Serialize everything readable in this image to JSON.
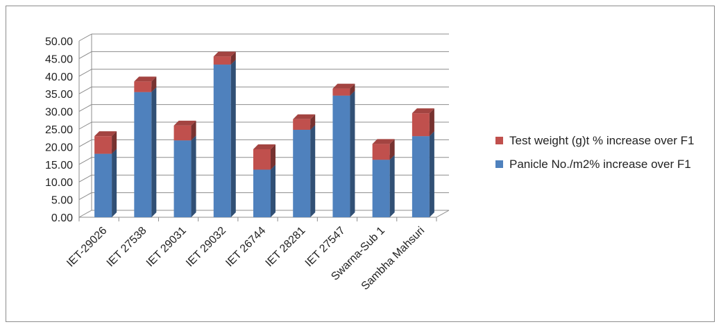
{
  "chart_data": {
    "type": "bar",
    "stacked": true,
    "three_d": true,
    "categories": [
      "IET-29026",
      "IET 27538",
      "IET 29031",
      "IET 29032",
      "IET 26744",
      "IET 28281",
      "IET 27547",
      "Swarna-Sub 1",
      "Sambha Mahsuri"
    ],
    "series": [
      {
        "name": "Panicle No./m2% increase over F1",
        "color": "#4F81BD",
        "values": [
          18.0,
          35.5,
          21.8,
          43.3,
          13.5,
          24.8,
          34.5,
          16.3,
          23.0
        ]
      },
      {
        "name": "Test weight (g)t % increase over F1",
        "color": "#C0504D",
        "values": [
          5.0,
          3.0,
          4.2,
          2.3,
          5.8,
          3.0,
          2.0,
          4.5,
          6.5
        ]
      }
    ],
    "ylim": [
      0,
      50
    ],
    "yticks": [
      "0.00",
      "5.00",
      "10.00",
      "15.00",
      "20.00",
      "25.00",
      "30.00",
      "35.00",
      "40.00",
      "45.00",
      "50.00"
    ],
    "legend_order": [
      1,
      0
    ],
    "legend_position": "right",
    "grid": true
  }
}
